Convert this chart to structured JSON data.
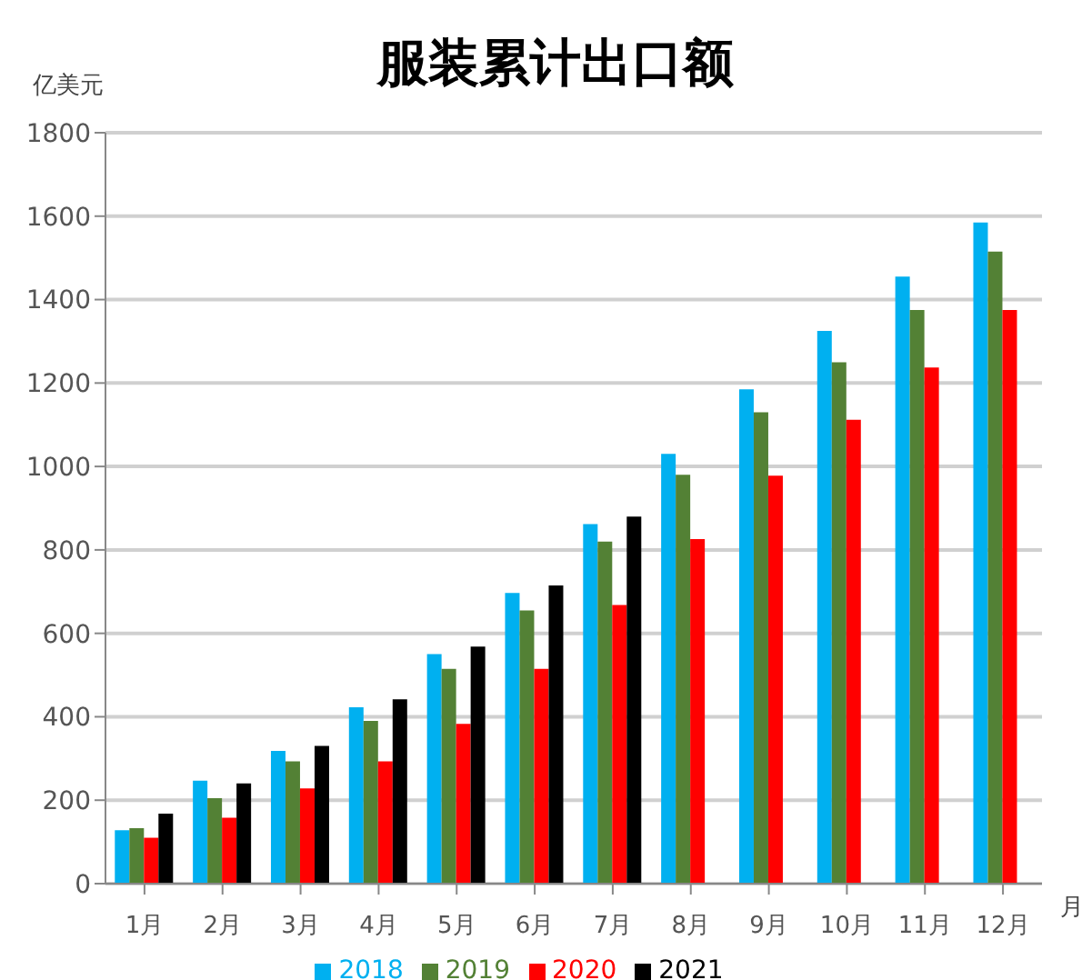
{
  "chart_data": {
    "type": "bar",
    "title": "服装累计出口额",
    "ylabel": "亿美元",
    "xlabel": "月",
    "categories": [
      "1月",
      "2月",
      "3月",
      "4月",
      "5月",
      "6月",
      "7月",
      "8月",
      "9月",
      "10月",
      "11月",
      "12月"
    ],
    "series": [
      {
        "name": "2018",
        "color": "#00b0f0",
        "values": [
          128,
          247,
          318,
          423,
          550,
          697,
          862,
          1030,
          1185,
          1325,
          1455,
          1585
        ]
      },
      {
        "name": "2019",
        "color": "#538135",
        "values": [
          133,
          205,
          293,
          390,
          515,
          655,
          820,
          980,
          1130,
          1250,
          1375,
          1515
        ]
      },
      {
        "name": "2020",
        "color": "#ff0000",
        "values": [
          110,
          158,
          228,
          293,
          383,
          515,
          668,
          826,
          978,
          1112,
          1237,
          1375
        ]
      },
      {
        "name": "2021",
        "color": "#000000",
        "values": [
          168,
          240,
          330,
          442,
          568,
          715,
          880,
          null,
          null,
          null,
          null,
          null
        ]
      }
    ],
    "ylim": [
      0,
      1800
    ],
    "yticks": [
      0,
      200,
      400,
      600,
      800,
      1000,
      1200,
      1400,
      1600,
      1800
    ],
    "grid": "y",
    "legend": "bottom"
  }
}
